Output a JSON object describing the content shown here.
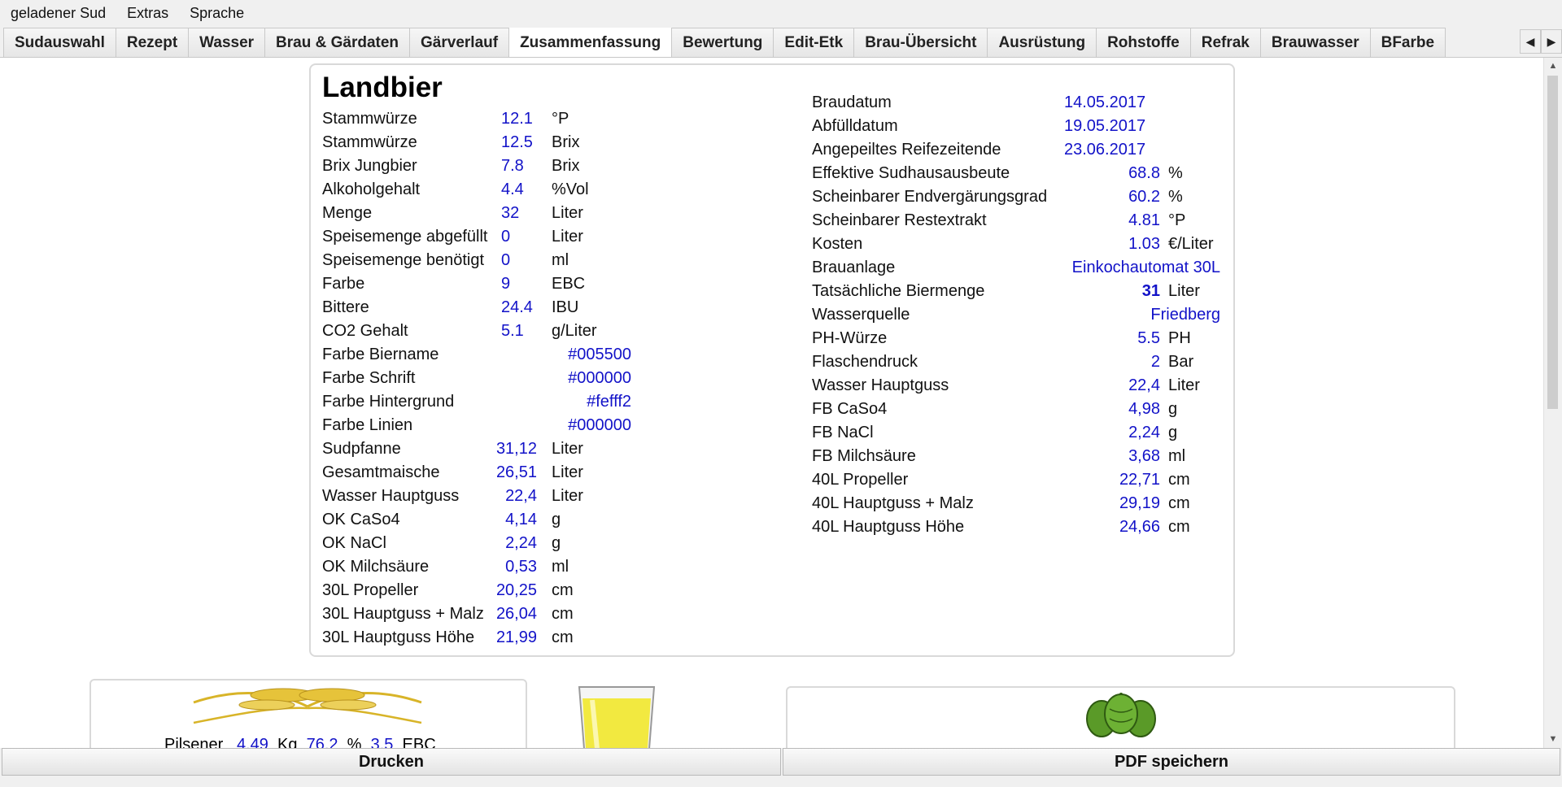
{
  "menu": [
    {
      "label": "geladener Sud"
    },
    {
      "label": "Extras"
    },
    {
      "label": "Sprache"
    }
  ],
  "tabs": [
    {
      "label": "Sudauswahl"
    },
    {
      "label": "Rezept"
    },
    {
      "label": "Wasser"
    },
    {
      "label": "Brau & Gärdaten"
    },
    {
      "label": "Gärverlauf"
    },
    {
      "label": "Zusammenfassung"
    },
    {
      "label": "Bewertung"
    },
    {
      "label": "Edit-Etk"
    },
    {
      "label": "Brau-Übersicht"
    },
    {
      "label": "Ausrüstung"
    },
    {
      "label": "Rohstoffe"
    },
    {
      "label": "Refrak"
    },
    {
      "label": "Brauwasser"
    },
    {
      "label": "BFarbe"
    }
  ],
  "active_tab": "Zusammenfassung",
  "summary": {
    "beer_name": "Landbier",
    "left": [
      {
        "label": "Stammwürze",
        "value": "12.1",
        "unit": "°P"
      },
      {
        "label": "Stammwürze",
        "value": "12.5",
        "unit": "Brix"
      },
      {
        "label": "Brix Jungbier",
        "value": "7.8",
        "unit": "Brix"
      },
      {
        "label": "Alkoholgehalt",
        "value": "4.4",
        "unit": "%Vol"
      },
      {
        "label": "Menge",
        "value": "32",
        "unit": "Liter"
      },
      {
        "label": "Speisemenge abgefüllt",
        "value": "0",
        "unit": "Liter"
      },
      {
        "label": "Speisemenge benötigt",
        "value": "0",
        "unit": "ml"
      },
      {
        "label": "Farbe",
        "value": "9",
        "unit": "EBC"
      },
      {
        "label": "Bittere",
        "value": "24.4",
        "unit": "IBU"
      },
      {
        "label": "CO2 Gehalt",
        "value": "5.1",
        "unit": "g/Liter"
      },
      {
        "label": "Farbe Biername",
        "value": "#005500",
        "unit": ""
      },
      {
        "label": "Farbe Schrift",
        "value": "#000000",
        "unit": ""
      },
      {
        "label": "Farbe Hintergrund",
        "value": "#fefff2",
        "unit": ""
      },
      {
        "label": "Farbe Linien",
        "value": "#000000",
        "unit": ""
      },
      {
        "label": "Sudpfanne",
        "value": "31,12",
        "unit": "Liter"
      },
      {
        "label": "Gesamtmaische",
        "value": "26,51",
        "unit": "Liter"
      },
      {
        "label": "Wasser Hauptguss",
        "value": "22,4",
        "unit": "Liter"
      },
      {
        "label": "OK CaSo4",
        "value": "4,14",
        "unit": "g"
      },
      {
        "label": "OK NaCl",
        "value": "2,24",
        "unit": "g"
      },
      {
        "label": "OK Milchsäure",
        "value": "0,53",
        "unit": "ml"
      },
      {
        "label": "30L Propeller",
        "value": "20,25",
        "unit": "cm"
      },
      {
        "label": "30L Hauptguss + Malz",
        "value": "26,04",
        "unit": "cm"
      },
      {
        "label": "30L Hauptguss Höhe",
        "value": "21,99",
        "unit": "cm"
      }
    ],
    "right": [
      {
        "label": "Braudatum",
        "value": "14.05.2017",
        "unit": ""
      },
      {
        "label": "Abfülldatum",
        "value": "19.05.2017",
        "unit": ""
      },
      {
        "label": "Angepeiltes Reifezeitende",
        "value": "23.06.2017",
        "unit": ""
      },
      {
        "label": "Effektive Sudhausausbeute",
        "value": "68.8",
        "unit": "%"
      },
      {
        "label": "Scheinbarer Endvergärungsgrad",
        "value": "60.2",
        "unit": "%"
      },
      {
        "label": "Scheinbarer Restextrakt",
        "value": "4.81",
        "unit": "°P"
      },
      {
        "label": "Kosten",
        "value": "1.03",
        "unit": "€/Liter"
      },
      {
        "label": "Brauanlage",
        "value": "Einkochautomat 30L",
        "unit": ""
      },
      {
        "label": "Tatsächliche Biermenge",
        "value": "31",
        "unit": "Liter"
      },
      {
        "label": "Wasserquelle",
        "value": "Friedberg",
        "unit": ""
      },
      {
        "label": "PH-Würze",
        "value": "5.5",
        "unit": "PH"
      },
      {
        "label": "Flaschendruck",
        "value": "2",
        "unit": "Bar"
      },
      {
        "label": "Wasser Hauptguss",
        "value": "22,4",
        "unit": "Liter"
      },
      {
        "label": "FB CaSo4",
        "value": "4,98",
        "unit": "g"
      },
      {
        "label": "FB NaCl",
        "value": "2,24",
        "unit": "g"
      },
      {
        "label": "FB Milchsäure",
        "value": "3,68",
        "unit": "ml"
      },
      {
        "label": "40L Propeller",
        "value": "22,71",
        "unit": "cm"
      },
      {
        "label": "40L Hauptguss + Malz",
        "value": "29,19",
        "unit": "cm"
      },
      {
        "label": "40L Hauptguss Höhe",
        "value": "24,66",
        "unit": "cm"
      }
    ]
  },
  "malt": {
    "name": "Pilsener",
    "amount": "4.49",
    "amount_unit": "Kg",
    "percent": "76.2",
    "percent_unit": "%",
    "color": "3.5",
    "color_unit": "EBC"
  },
  "buttons": {
    "print": "Drucken",
    "pdf": "PDF speichern"
  },
  "colors": {
    "value_blue": "#1212c8",
    "beer_yellow": "#f2e940",
    "hop_green": "#5a9a28",
    "wheat_gold": "#d8b428"
  }
}
